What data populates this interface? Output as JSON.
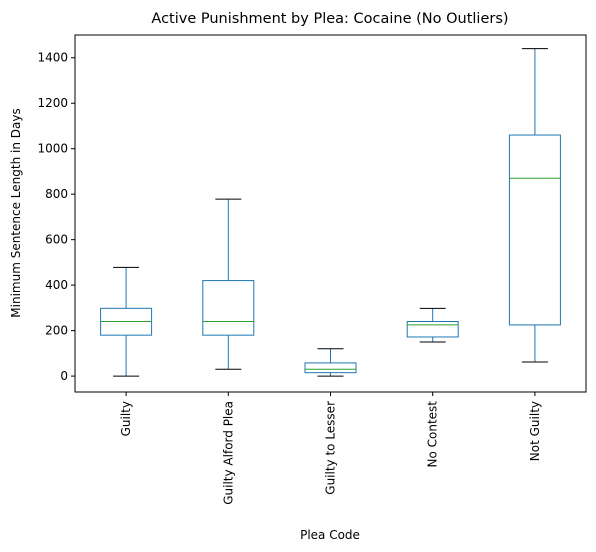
{
  "chart_data": {
    "type": "box",
    "title": "Active Punishment by Plea: Cocaine (No Outliers)",
    "xlabel": "Plea Code",
    "ylabel": "Minimum Sentence Length in Days",
    "ylim": [
      -70,
      1500
    ],
    "yticks": [
      0,
      200,
      400,
      600,
      800,
      1000,
      1200,
      1400
    ],
    "grid": false,
    "categories": [
      "Guilty",
      "Guilty Alford Plea",
      "Guilty to Lesser",
      "No Contest",
      "Not Guilty"
    ],
    "boxes": [
      {
        "category": "Guilty",
        "whisker_low": 0,
        "q1": 180,
        "median": 240,
        "q3": 298,
        "whisker_high": 478
      },
      {
        "category": "Guilty Alford Plea",
        "whisker_low": 30,
        "q1": 180,
        "median": 240,
        "q3": 420,
        "whisker_high": 778
      },
      {
        "category": "Guilty to Lesser",
        "whisker_low": 0,
        "q1": 15,
        "median": 30,
        "q3": 58,
        "whisker_high": 120
      },
      {
        "category": "No Contest",
        "whisker_low": 150,
        "q1": 172,
        "median": 225,
        "q3": 240,
        "whisker_high": 298
      },
      {
        "category": "Not Guilty",
        "whisker_low": 62,
        "q1": 225,
        "median": 870,
        "q3": 1060,
        "whisker_high": 1440
      }
    ],
    "colors": {
      "box": "#1f77b4",
      "median": "#2ca02c",
      "whisker": "#1f77b4",
      "cap": "#000000"
    }
  }
}
